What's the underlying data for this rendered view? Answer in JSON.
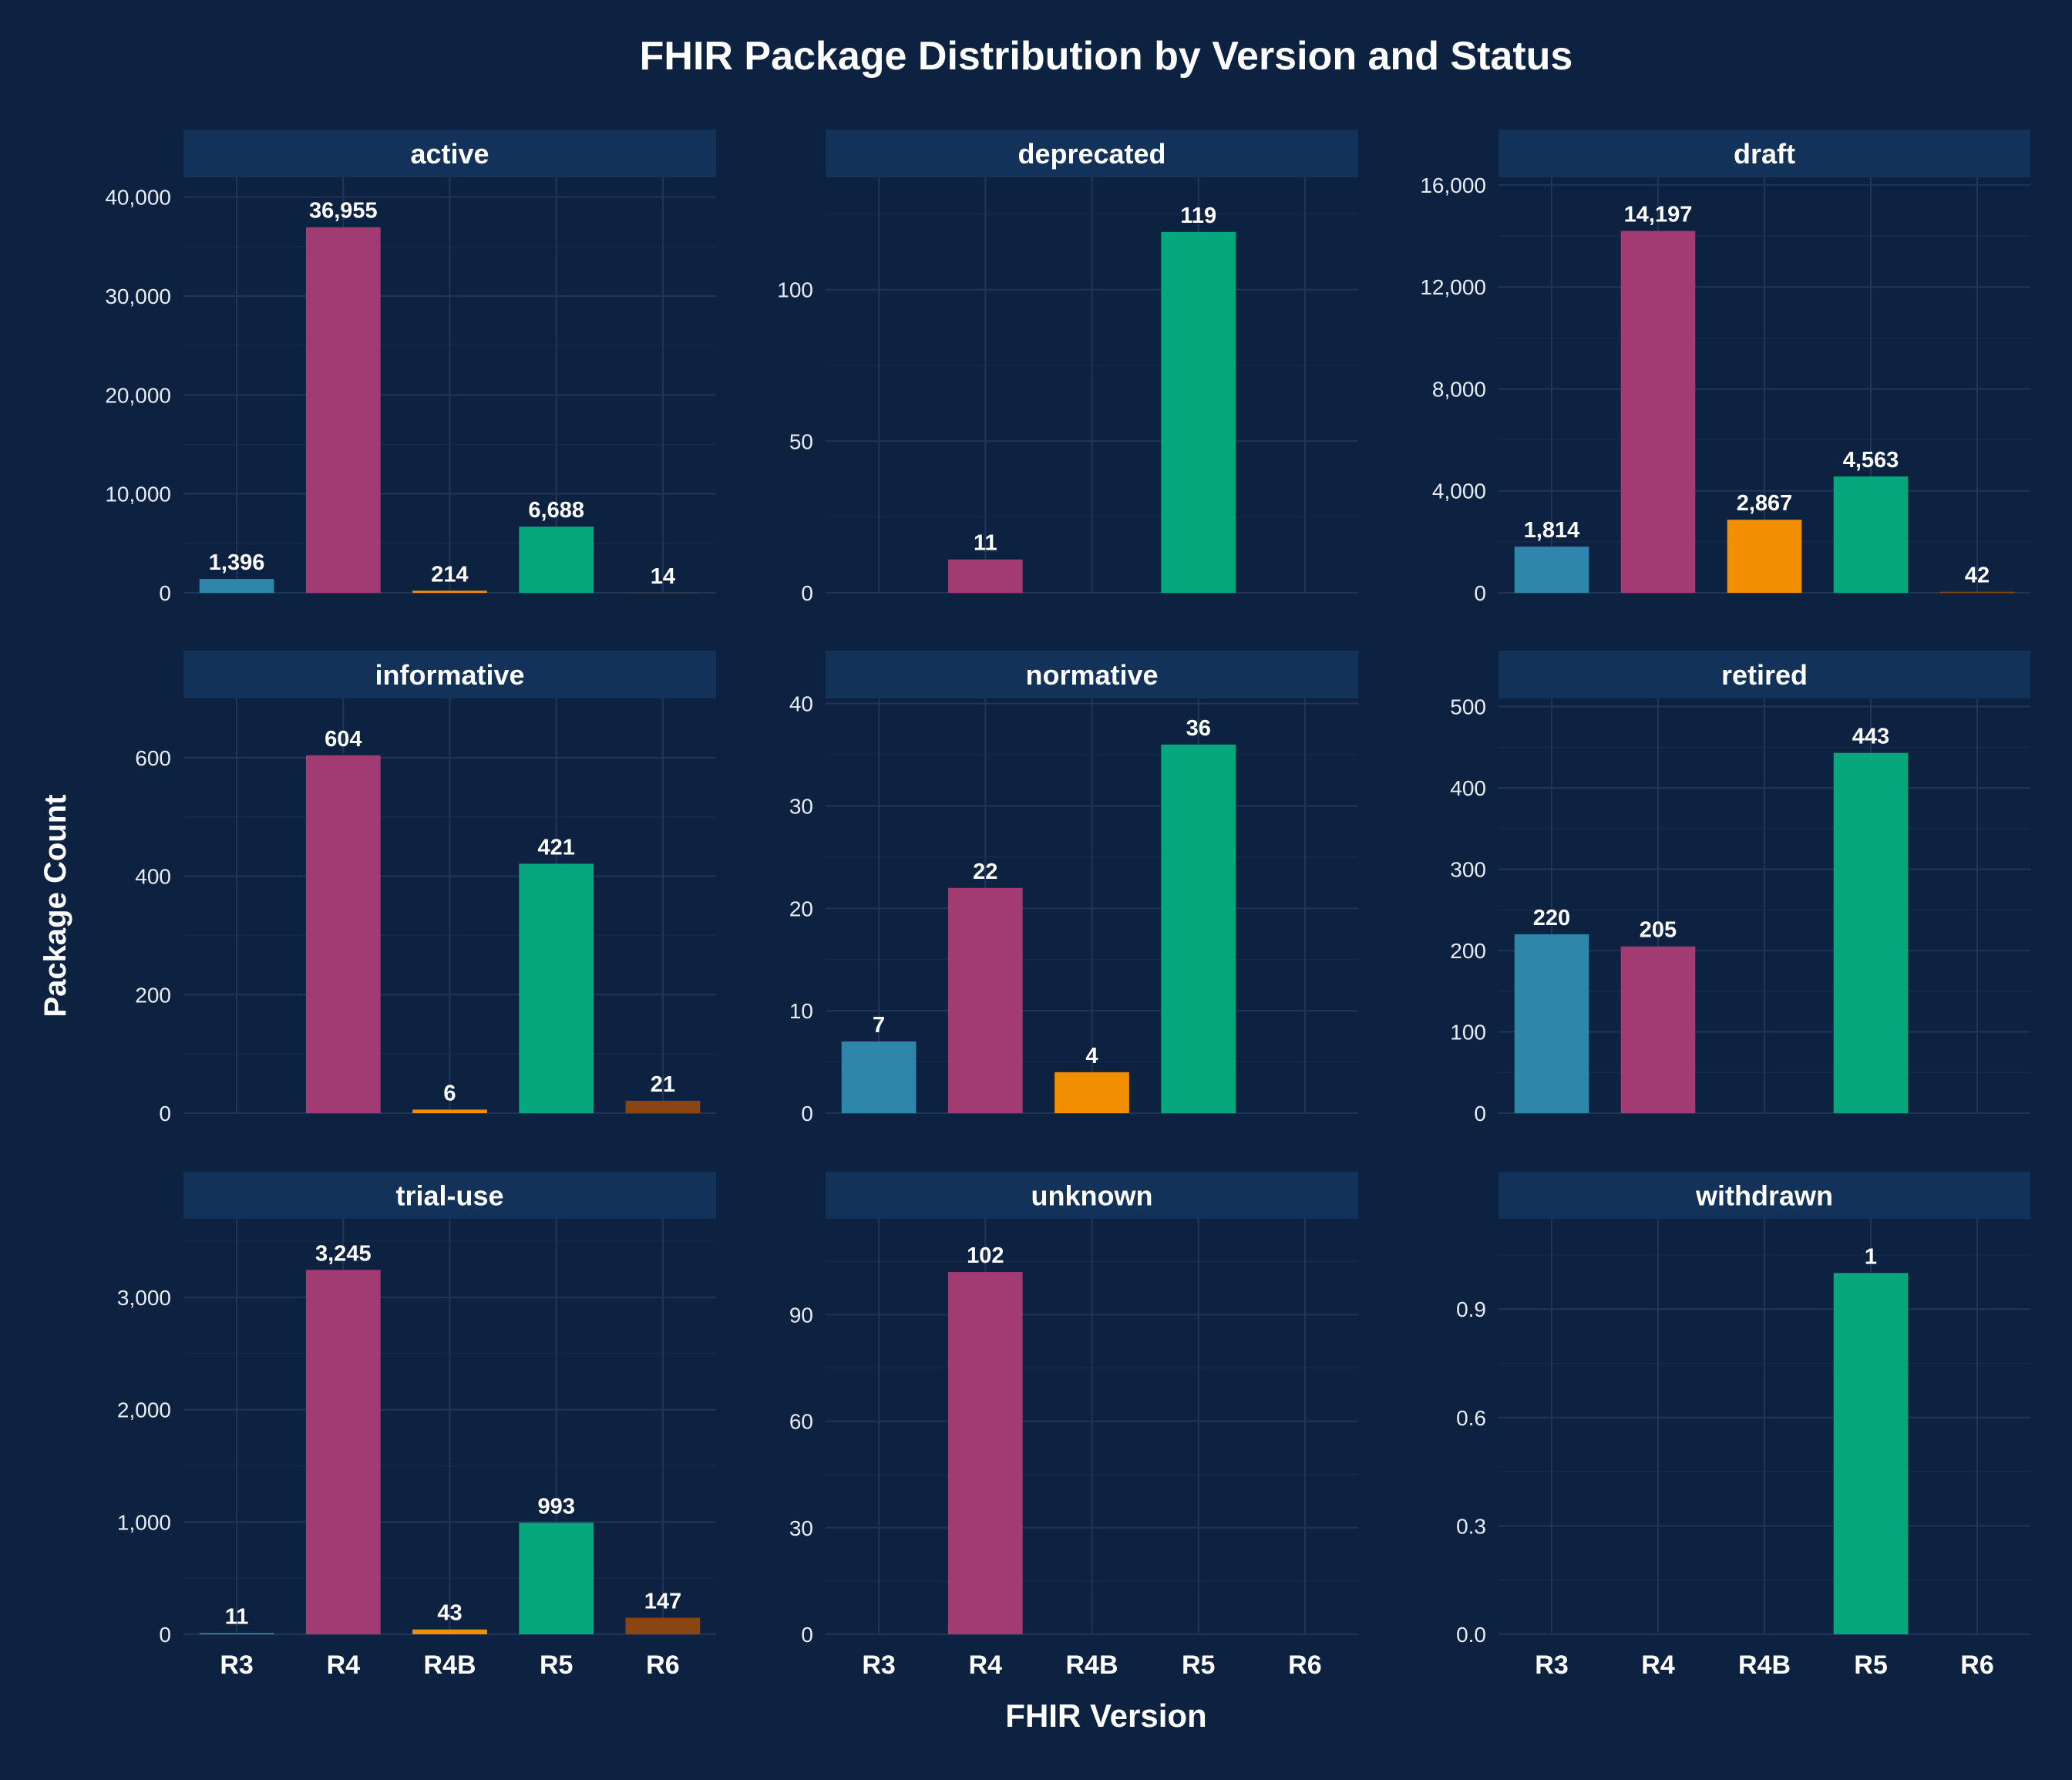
{
  "chart_data": {
    "type": "bar",
    "title": "FHIR Package Distribution by Version and Status",
    "xlabel": "FHIR Version",
    "ylabel": "Package Count",
    "categories": [
      "R3",
      "R4",
      "R4B",
      "R5",
      "R6"
    ],
    "colors": {
      "R3": "#2e86ab",
      "R4": "#a23b72",
      "R4B": "#f18f01",
      "R5": "#06a77d",
      "R6": "#8b4513",
      "background": "#0d2240",
      "strip": "#12325a",
      "grid": "#1f3658",
      "text": "#ffffff",
      "tick_text": "#e8ecf2"
    },
    "facets": [
      {
        "name": "active",
        "ylim": [
          0,
          42000
        ],
        "yticks": [
          0,
          10000,
          20000,
          30000,
          40000
        ],
        "ytick_labels": [
          "0",
          "10,000",
          "20,000",
          "30,000",
          "40,000"
        ],
        "values": [
          1396,
          36955,
          214,
          6688,
          14
        ],
        "labels": [
          "1,396",
          "36,955",
          "214",
          "6,688",
          "14"
        ]
      },
      {
        "name": "deprecated",
        "ylim": [
          0,
          137
        ],
        "yticks": [
          0,
          50,
          100
        ],
        "ytick_labels": [
          "0",
          "50",
          "100"
        ],
        "values": [
          null,
          11,
          null,
          119,
          null
        ],
        "labels": [
          "",
          "11",
          "",
          "119",
          ""
        ]
      },
      {
        "name": "draft",
        "ylim": [
          0,
          16300
        ],
        "yticks": [
          0,
          4000,
          8000,
          12000,
          16000
        ],
        "ytick_labels": [
          "0",
          "4,000",
          "8,000",
          "12,000",
          "16,000"
        ],
        "values": [
          1814,
          14197,
          2867,
          4563,
          42
        ],
        "labels": [
          "1,814",
          "14,197",
          "2,867",
          "4,563",
          "42"
        ]
      },
      {
        "name": "informative",
        "ylim": [
          0,
          700
        ],
        "yticks": [
          0,
          200,
          400,
          600
        ],
        "ytick_labels": [
          "0",
          "200",
          "400",
          "600"
        ],
        "values": [
          null,
          604,
          6,
          421,
          21
        ],
        "labels": [
          "",
          "604",
          "6",
          "421",
          "21"
        ]
      },
      {
        "name": "normative",
        "ylim": [
          0,
          40.5
        ],
        "yticks": [
          0,
          10,
          20,
          30,
          40
        ],
        "ytick_labels": [
          "0",
          "10",
          "20",
          "30",
          "40"
        ],
        "values": [
          7,
          22,
          4,
          36,
          null
        ],
        "labels": [
          "7",
          "22",
          "4",
          "36",
          ""
        ]
      },
      {
        "name": "retired",
        "ylim": [
          0,
          510
        ],
        "yticks": [
          0,
          100,
          200,
          300,
          400,
          500
        ],
        "ytick_labels": [
          "0",
          "100",
          "200",
          "300",
          "400",
          "500"
        ],
        "values": [
          220,
          205,
          null,
          443,
          null
        ],
        "labels": [
          "220",
          "205",
          "",
          "443",
          ""
        ]
      },
      {
        "name": "trial-use",
        "ylim": [
          0,
          3700
        ],
        "yticks": [
          0,
          1000,
          2000,
          3000
        ],
        "ytick_labels": [
          "0",
          "1,000",
          "2,000",
          "3,000"
        ],
        "values": [
          11,
          3245,
          43,
          993,
          147
        ],
        "labels": [
          "11",
          "3,245",
          "43",
          "993",
          "147"
        ]
      },
      {
        "name": "unknown",
        "ylim": [
          0,
          117
        ],
        "yticks": [
          0,
          30,
          60,
          90
        ],
        "ytick_labels": [
          "0",
          "30",
          "60",
          "90"
        ],
        "values": [
          null,
          102,
          null,
          null,
          null
        ],
        "labels": [
          "",
          "102",
          "",
          "",
          ""
        ]
      },
      {
        "name": "withdrawn",
        "ylim": [
          0,
          1.15
        ],
        "yticks": [
          0,
          0.3,
          0.6,
          0.9
        ],
        "ytick_labels": [
          "0.0",
          "0.3",
          "0.6",
          "0.9"
        ],
        "values": [
          null,
          null,
          null,
          1,
          null
        ],
        "labels": [
          "",
          "",
          "",
          "1",
          ""
        ]
      }
    ],
    "grid": true,
    "legend": "none"
  }
}
